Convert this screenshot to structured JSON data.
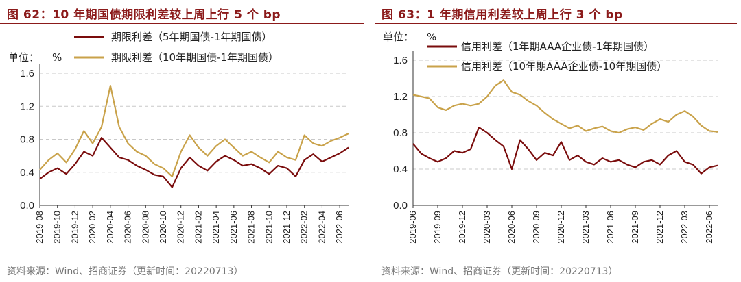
{
  "charts": [
    {
      "figure_title": "图 62：10 年期国债期限利差较上周上行 5 个 bp",
      "source": "资料来源：Wind、招商证券（更新时间：20220713）"
    },
    {
      "figure_title": "图 63：1 年期信用利差较上周上行 3 个 bp",
      "source": "资料来源：Wind、招商证券（更新时间：20220713）"
    }
  ],
  "colors": {
    "dark_red": "#7a0c0c",
    "gold": "#c9a24a",
    "title": "#8b1a1a"
  },
  "chart_data": [
    {
      "type": "line",
      "title": "10 年期国债期限利差较上周上行 5 个 bp",
      "ylabel": "单位：%",
      "unit_label": "单位：",
      "unit_symbol": "%",
      "ylim": [
        0.0,
        1.6
      ],
      "yticks": [
        "0.0",
        "0.4",
        "0.8",
        "1.2",
        "1.6"
      ],
      "xlim": [
        "2019-08",
        "2022-07"
      ],
      "xticks": [
        "2019-08",
        "2019-10",
        "2019-12",
        "2020-02",
        "2020-04",
        "2020-06",
        "2020-08",
        "2020-10",
        "2020-12",
        "2021-02",
        "2021-04",
        "2021-06",
        "2021-08",
        "2021-10",
        "2021-12",
        "2022-02",
        "2022-04",
        "2022-06"
      ],
      "legend_position": "top-center",
      "series": [
        {
          "name": "期限利差（5年期国债-1年期国债）",
          "color": "#7a0c0c",
          "points": [
            [
              "2019-08",
              0.32
            ],
            [
              "2019-09",
              0.4
            ],
            [
              "2019-10",
              0.45
            ],
            [
              "2019-11",
              0.38
            ],
            [
              "2019-12",
              0.5
            ],
            [
              "2020-01",
              0.65
            ],
            [
              "2020-02",
              0.6
            ],
            [
              "2020-03",
              0.82
            ],
            [
              "2020-04",
              0.7
            ],
            [
              "2020-05",
              0.58
            ],
            [
              "2020-06",
              0.55
            ],
            [
              "2020-07",
              0.48
            ],
            [
              "2020-08",
              0.43
            ],
            [
              "2020-09",
              0.37
            ],
            [
              "2020-10",
              0.35
            ],
            [
              "2020-11",
              0.22
            ],
            [
              "2020-12",
              0.45
            ],
            [
              "2021-01",
              0.58
            ],
            [
              "2021-02",
              0.48
            ],
            [
              "2021-03",
              0.42
            ],
            [
              "2021-04",
              0.53
            ],
            [
              "2021-05",
              0.6
            ],
            [
              "2021-06",
              0.55
            ],
            [
              "2021-07",
              0.48
            ],
            [
              "2021-08",
              0.5
            ],
            [
              "2021-09",
              0.45
            ],
            [
              "2021-10",
              0.38
            ],
            [
              "2021-11",
              0.48
            ],
            [
              "2021-12",
              0.45
            ],
            [
              "2022-01",
              0.35
            ],
            [
              "2022-02",
              0.55
            ],
            [
              "2022-03",
              0.62
            ],
            [
              "2022-04",
              0.53
            ],
            [
              "2022-05",
              0.58
            ],
            [
              "2022-06",
              0.63
            ],
            [
              "2022-07",
              0.7
            ]
          ]
        },
        {
          "name": "期限利差（10年期国债-1年期国债）",
          "color": "#c9a24a",
          "points": [
            [
              "2019-08",
              0.43
            ],
            [
              "2019-09",
              0.55
            ],
            [
              "2019-10",
              0.63
            ],
            [
              "2019-11",
              0.52
            ],
            [
              "2019-12",
              0.68
            ],
            [
              "2020-01",
              0.9
            ],
            [
              "2020-02",
              0.75
            ],
            [
              "2020-03",
              0.95
            ],
            [
              "2020-04",
              1.45
            ],
            [
              "2020-05",
              0.95
            ],
            [
              "2020-06",
              0.75
            ],
            [
              "2020-07",
              0.65
            ],
            [
              "2020-08",
              0.6
            ],
            [
              "2020-09",
              0.5
            ],
            [
              "2020-10",
              0.45
            ],
            [
              "2020-11",
              0.35
            ],
            [
              "2020-12",
              0.65
            ],
            [
              "2021-01",
              0.85
            ],
            [
              "2021-02",
              0.7
            ],
            [
              "2021-03",
              0.6
            ],
            [
              "2021-04",
              0.72
            ],
            [
              "2021-05",
              0.8
            ],
            [
              "2021-06",
              0.7
            ],
            [
              "2021-07",
              0.6
            ],
            [
              "2021-08",
              0.65
            ],
            [
              "2021-09",
              0.58
            ],
            [
              "2021-10",
              0.52
            ],
            [
              "2021-11",
              0.65
            ],
            [
              "2021-12",
              0.58
            ],
            [
              "2022-01",
              0.55
            ],
            [
              "2022-02",
              0.85
            ],
            [
              "2022-03",
              0.75
            ],
            [
              "2022-04",
              0.72
            ],
            [
              "2022-05",
              0.78
            ],
            [
              "2022-06",
              0.82
            ],
            [
              "2022-07",
              0.87
            ]
          ]
        }
      ]
    },
    {
      "type": "line",
      "title": "1 年期信用利差较上周上行 3 个 bp",
      "ylabel": "单位：%",
      "unit_label": "单位：",
      "unit_symbol": "%",
      "ylim": [
        0.0,
        1.6
      ],
      "yticks": [
        "0.0",
        "0.4",
        "0.8",
        "1.2",
        "1.6"
      ],
      "xlim": [
        "2019-06",
        "2022-07"
      ],
      "xticks": [
        "2019-06",
        "2019-09",
        "2019-12",
        "2020-03",
        "2020-06",
        "2020-09",
        "2020-12",
        "2021-03",
        "2021-06",
        "2021-09",
        "2021-12",
        "2022-03",
        "2022-06"
      ],
      "legend_position": "top-center",
      "series": [
        {
          "name": "信用利差（1年期AAA企业债-1年期国债）",
          "color": "#7a0c0c",
          "points": [
            [
              "2019-06",
              0.68
            ],
            [
              "2019-07",
              0.57
            ],
            [
              "2019-08",
              0.52
            ],
            [
              "2019-09",
              0.48
            ],
            [
              "2019-10",
              0.52
            ],
            [
              "2019-11",
              0.6
            ],
            [
              "2019-12",
              0.58
            ],
            [
              "2020-01",
              0.62
            ],
            [
              "2020-02",
              0.86
            ],
            [
              "2020-03",
              0.8
            ],
            [
              "2020-04",
              0.72
            ],
            [
              "2020-05",
              0.65
            ],
            [
              "2020-06",
              0.4
            ],
            [
              "2020-07",
              0.72
            ],
            [
              "2020-08",
              0.62
            ],
            [
              "2020-09",
              0.5
            ],
            [
              "2020-10",
              0.58
            ],
            [
              "2020-11",
              0.55
            ],
            [
              "2020-12",
              0.7
            ],
            [
              "2021-01",
              0.5
            ],
            [
              "2021-02",
              0.55
            ],
            [
              "2021-03",
              0.48
            ],
            [
              "2021-04",
              0.45
            ],
            [
              "2021-05",
              0.52
            ],
            [
              "2021-06",
              0.48
            ],
            [
              "2021-07",
              0.5
            ],
            [
              "2021-08",
              0.45
            ],
            [
              "2021-09",
              0.42
            ],
            [
              "2021-10",
              0.48
            ],
            [
              "2021-11",
              0.5
            ],
            [
              "2021-12",
              0.45
            ],
            [
              "2022-01",
              0.55
            ],
            [
              "2022-02",
              0.6
            ],
            [
              "2022-03",
              0.48
            ],
            [
              "2022-04",
              0.45
            ],
            [
              "2022-05",
              0.35
            ],
            [
              "2022-06",
              0.42
            ],
            [
              "2022-07",
              0.44
            ]
          ]
        },
        {
          "name": "信用利差（10年期AAA企业债-10年期国债）",
          "color": "#c9a24a",
          "points": [
            [
              "2019-06",
              1.22
            ],
            [
              "2019-07",
              1.2
            ],
            [
              "2019-08",
              1.18
            ],
            [
              "2019-09",
              1.08
            ],
            [
              "2019-10",
              1.05
            ],
            [
              "2019-11",
              1.1
            ],
            [
              "2019-12",
              1.12
            ],
            [
              "2020-01",
              1.1
            ],
            [
              "2020-02",
              1.12
            ],
            [
              "2020-03",
              1.2
            ],
            [
              "2020-04",
              1.32
            ],
            [
              "2020-05",
              1.38
            ],
            [
              "2020-06",
              1.25
            ],
            [
              "2020-07",
              1.22
            ],
            [
              "2020-08",
              1.15
            ],
            [
              "2020-09",
              1.1
            ],
            [
              "2020-10",
              1.02
            ],
            [
              "2020-11",
              0.95
            ],
            [
              "2020-12",
              0.9
            ],
            [
              "2021-01",
              0.85
            ],
            [
              "2021-02",
              0.88
            ],
            [
              "2021-03",
              0.82
            ],
            [
              "2021-04",
              0.85
            ],
            [
              "2021-05",
              0.87
            ],
            [
              "2021-06",
              0.82
            ],
            [
              "2021-07",
              0.8
            ],
            [
              "2021-08",
              0.84
            ],
            [
              "2021-09",
              0.86
            ],
            [
              "2021-10",
              0.83
            ],
            [
              "2021-11",
              0.9
            ],
            [
              "2021-12",
              0.95
            ],
            [
              "2022-01",
              0.92
            ],
            [
              "2022-02",
              1.0
            ],
            [
              "2022-03",
              1.04
            ],
            [
              "2022-04",
              0.98
            ],
            [
              "2022-05",
              0.88
            ],
            [
              "2022-06",
              0.82
            ],
            [
              "2022-07",
              0.81
            ]
          ]
        }
      ]
    }
  ]
}
